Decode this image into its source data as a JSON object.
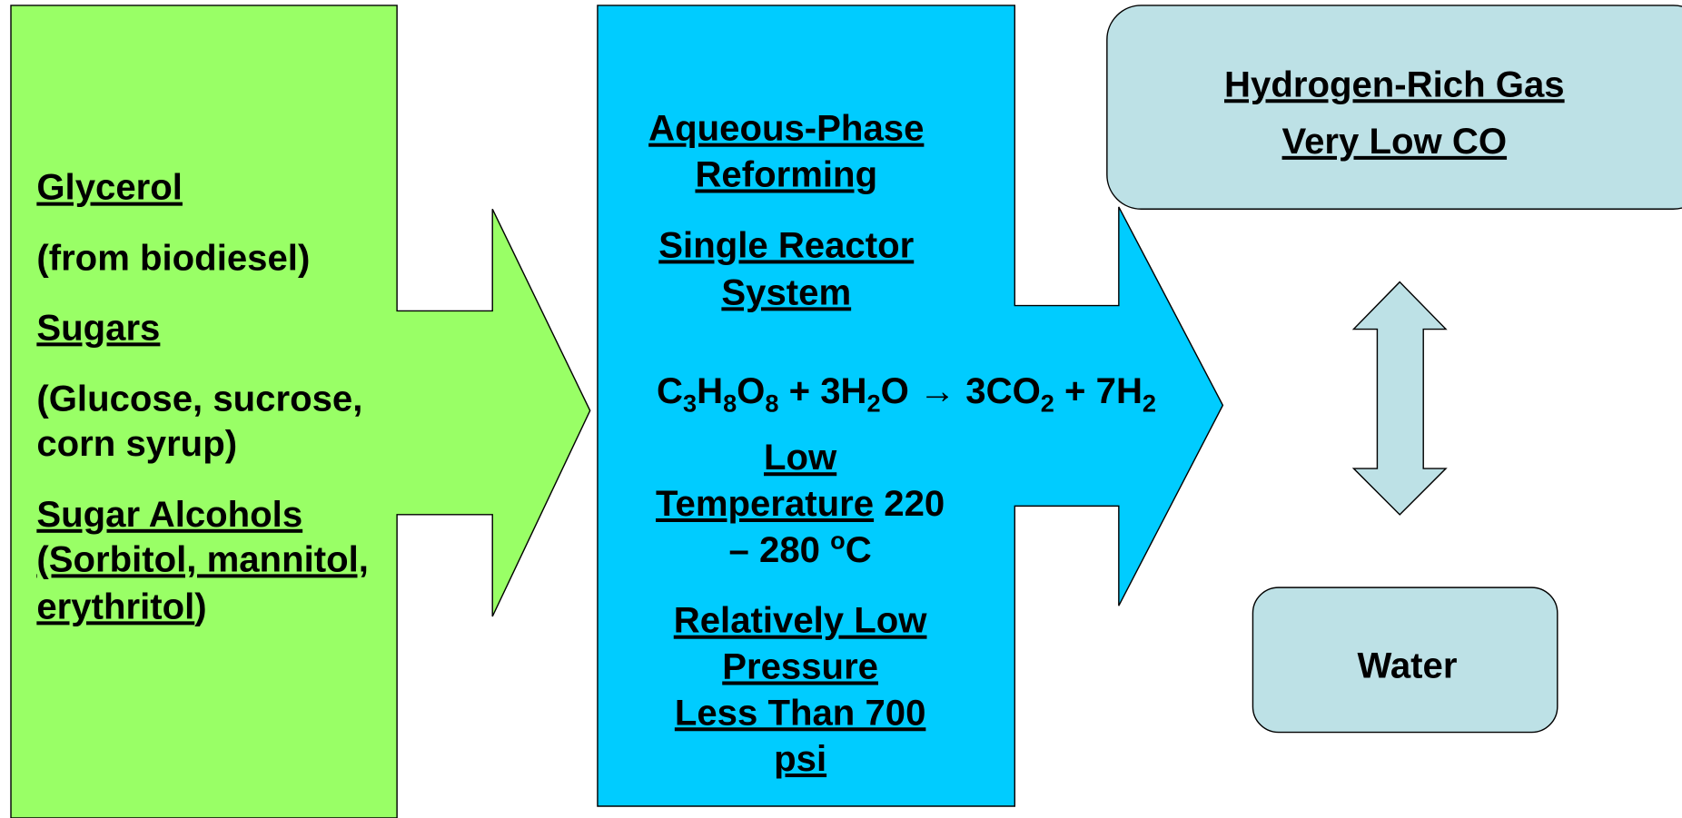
{
  "feedstock": {
    "lines": [
      "Glycerol",
      "(from biodiesel)",
      "Sugars",
      "(Glucose, sucrose,",
      "corn syrup)",
      "Sugar Alcohols",
      "(Sorbitol, mannitol,",
      "erythritol",
      ")"
    ]
  },
  "process": {
    "title": [
      "Aqueous-Phase",
      "Reforming"
    ],
    "reactor": [
      "Single Reactor",
      "System"
    ],
    "equation": [
      "C",
      "3",
      "H",
      "8",
      "O",
      "8",
      " + 3H",
      "2",
      "O → 3CO",
      "2",
      " + 7H",
      "2"
    ],
    "temperature": [
      "Low",
      "Temperature",
      " 220",
      "– 280 ",
      "o",
      "C"
    ],
    "pressure": [
      "Relatively Low",
      "Pressure",
      "Less Than 700",
      "psi"
    ]
  },
  "output": {
    "gas": [
      "Hydrogen-Rich Gas",
      "Very Low CO"
    ],
    "water": "Water"
  }
}
